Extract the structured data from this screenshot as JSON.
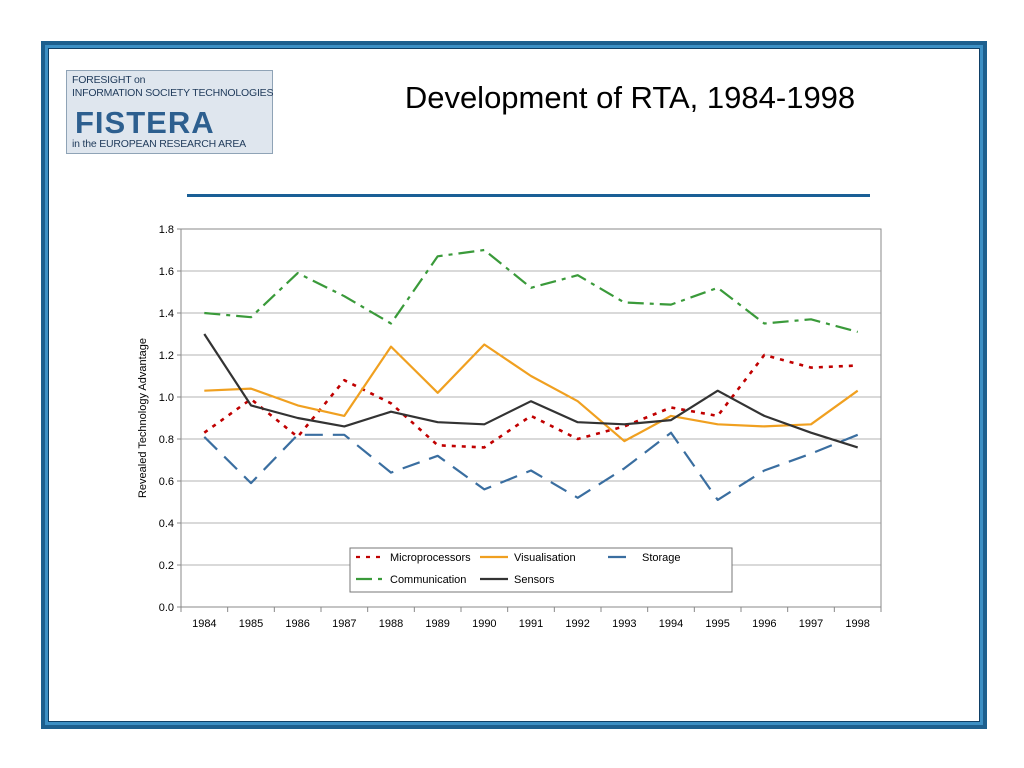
{
  "slide": {
    "title": "Development of RTA, 1984-1998",
    "logo": {
      "line1": "FORESIGHT on",
      "line2": "INFORMATION SOCIETY TECHNOLOGIES",
      "word": "FISTERA",
      "line3": "in the EUROPEAN RESEARCH AREA"
    },
    "colors": {
      "frame": "#3c8fc4",
      "title_rule": "#1a5f96"
    }
  },
  "chart_data": {
    "type": "line",
    "title": "",
    "xlabel": "",
    "ylabel": "Revealed Technology Advantage",
    "ylim": [
      0,
      1.8
    ],
    "yticks": [
      "0.0",
      "0.2",
      "0.4",
      "0.6",
      "0.8",
      "1.0",
      "1.2",
      "1.4",
      "1.6",
      "1.8"
    ],
    "grid": true,
    "legend_position": "bottom-center",
    "x": [
      "1984",
      "1985",
      "1986",
      "1987",
      "1988",
      "1989",
      "1990",
      "1991",
      "1992",
      "1993",
      "1994",
      "1995",
      "1996",
      "1997",
      "1998"
    ],
    "series": [
      {
        "name": "Microprocessors",
        "color": "#c00000",
        "dash": "dotted",
        "values": [
          0.83,
          0.99,
          0.81,
          1.08,
          0.97,
          0.77,
          0.76,
          0.91,
          0.8,
          0.86,
          0.95,
          0.91,
          1.2,
          1.14,
          1.15
        ]
      },
      {
        "name": "Visualisation",
        "color": "#f0a020",
        "dash": "solid",
        "values": [
          1.03,
          1.04,
          0.96,
          0.91,
          1.24,
          1.02,
          1.25,
          1.1,
          0.98,
          0.79,
          0.91,
          0.87,
          0.86,
          0.87,
          1.03
        ]
      },
      {
        "name": "Storage",
        "color": "#3a6ea0",
        "dash": "longdash",
        "values": [
          0.81,
          0.59,
          0.82,
          0.82,
          0.64,
          0.72,
          0.56,
          0.65,
          0.52,
          0.66,
          0.83,
          0.51,
          0.65,
          0.73,
          0.82
        ]
      },
      {
        "name": "Communication",
        "color": "#3a9a3a",
        "dash": "dashdot",
        "values": [
          1.4,
          1.38,
          1.59,
          1.48,
          1.35,
          1.67,
          1.7,
          1.52,
          1.58,
          1.45,
          1.44,
          1.52,
          1.35,
          1.37,
          1.31
        ]
      },
      {
        "name": "Sensors",
        "color": "#333333",
        "dash": "solid",
        "values": [
          1.3,
          0.96,
          0.9,
          0.86,
          0.93,
          0.88,
          0.87,
          0.98,
          0.88,
          0.87,
          0.89,
          1.03,
          0.91,
          0.83,
          0.76
        ]
      }
    ]
  }
}
